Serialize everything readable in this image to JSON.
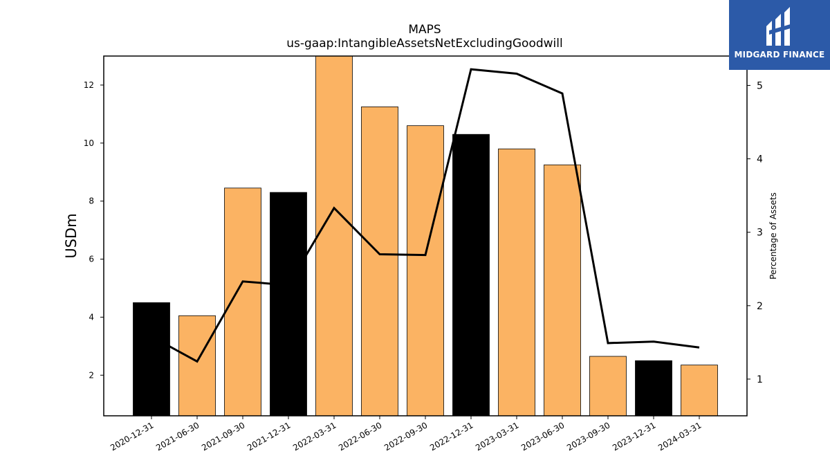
{
  "brand": {
    "name": "MIDGARD FINANCE"
  },
  "chart_data": {
    "type": "bar",
    "title": "MAPS",
    "subtitle": "us-gaap:IntangibleAssetsNetExcludingGoodwill",
    "ylabel": "USDm",
    "y2label": "Percentage of Assets",
    "categories": [
      "2020-12-31",
      "2021-06-30",
      "2021-09-30",
      "2021-12-31",
      "2022-03-31",
      "2022-06-30",
      "2022-09-30",
      "2022-12-31",
      "2023-03-31",
      "2023-06-30",
      "2023-09-30",
      "2023-12-31",
      "2024-03-31"
    ],
    "ylim": [
      0.6,
      13.0
    ],
    "y2lim": [
      0.5,
      5.4
    ],
    "yticks": [
      2,
      4,
      6,
      8,
      10,
      12
    ],
    "y2ticks": [
      1,
      2,
      3,
      4,
      5
    ],
    "series": [
      {
        "values": [
          4.5,
          4.05,
          8.45,
          8.3,
          13.0,
          11.25,
          10.6,
          10.3,
          9.8,
          9.25,
          2.65,
          2.5,
          2.35
        ],
        "highlight": [
          true,
          false,
          false,
          true,
          false,
          false,
          false,
          true,
          false,
          false,
          false,
          true,
          false
        ]
      },
      {
        "type": "line",
        "axis": "right",
        "values": [
          1.58,
          1.24,
          2.33,
          2.28,
          3.33,
          2.7,
          2.69,
          5.22,
          5.16,
          4.89,
          1.49,
          1.51,
          1.43
        ]
      }
    ],
    "colors": {
      "bar": "#fbb363",
      "highlight": "#000000",
      "line": "#000000"
    },
    "grid": false
  }
}
